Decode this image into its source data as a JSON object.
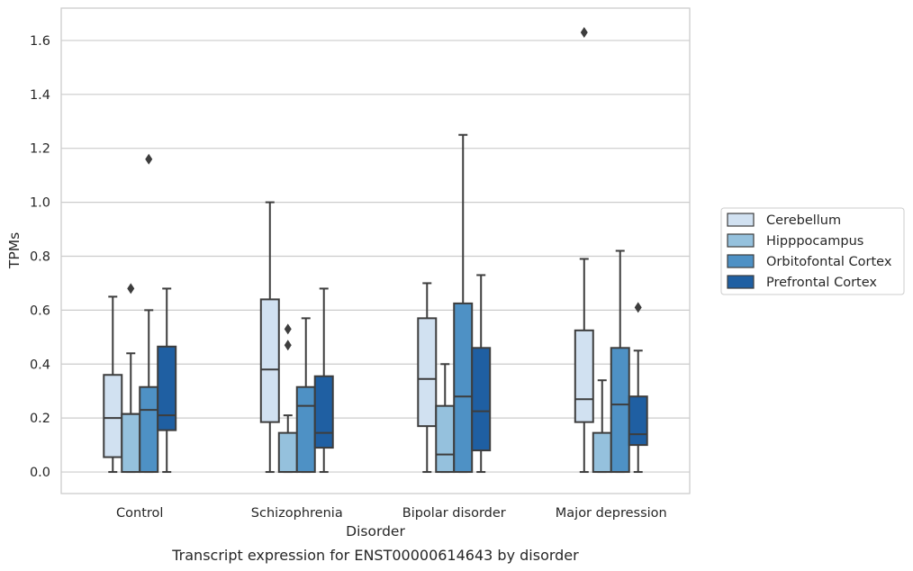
{
  "chart_data": {
    "type": "box",
    "title": "",
    "caption": "Transcript expression for ENST00000614643 by disorder",
    "xlabel": "Disorder",
    "ylabel": "TPMs",
    "ylim": [
      -0.08,
      1.72
    ],
    "yticks": [
      "0.0",
      "0.2",
      "0.4",
      "0.6",
      "0.8",
      "1.0",
      "1.2",
      "1.4",
      "1.6"
    ],
    "grid": true,
    "legend_position": "right",
    "categories": [
      "Control",
      "Schizophrenia",
      "Bipolar disorder",
      "Major depression"
    ],
    "series": [
      {
        "name": "Cerebellum",
        "color": "#d1e1f1",
        "boxes": [
          {
            "whislo": 0.0,
            "q1": 0.055,
            "med": 0.2,
            "q3": 0.36,
            "whishi": 0.65,
            "fliers": []
          },
          {
            "whislo": 0.0,
            "q1": 0.185,
            "med": 0.38,
            "q3": 0.64,
            "whishi": 1.0,
            "fliers": []
          },
          {
            "whislo": 0.0,
            "q1": 0.17,
            "med": 0.345,
            "q3": 0.57,
            "whishi": 0.7,
            "fliers": []
          },
          {
            "whislo": 0.0,
            "q1": 0.185,
            "med": 0.27,
            "q3": 0.525,
            "whishi": 0.79,
            "fliers": [
              1.63
            ]
          }
        ]
      },
      {
        "name": "Hipppocampus",
        "color": "#95c1dd",
        "boxes": [
          {
            "whislo": 0.0,
            "q1": 0.0,
            "med": 0.215,
            "q3": 0.215,
            "whishi": 0.44,
            "fliers": [
              0.68
            ]
          },
          {
            "whislo": 0.0,
            "q1": 0.0,
            "med": 0.0,
            "q3": 0.145,
            "whishi": 0.21,
            "fliers": [
              0.47,
              0.53
            ]
          },
          {
            "whislo": 0.0,
            "q1": 0.0,
            "med": 0.065,
            "q3": 0.245,
            "whishi": 0.4,
            "fliers": []
          },
          {
            "whislo": 0.0,
            "q1": 0.0,
            "med": 0.0,
            "q3": 0.145,
            "whishi": 0.34,
            "fliers": []
          }
        ]
      },
      {
        "name": "Orbitofontal Cortex",
        "color": "#4e91c5",
        "boxes": [
          {
            "whislo": 0.0,
            "q1": 0.0,
            "med": 0.23,
            "q3": 0.315,
            "whishi": 0.6,
            "fliers": [
              1.16
            ]
          },
          {
            "whislo": 0.0,
            "q1": 0.0,
            "med": 0.245,
            "q3": 0.315,
            "whishi": 0.57,
            "fliers": []
          },
          {
            "whislo": 0.0,
            "q1": 0.0,
            "med": 0.28,
            "q3": 0.625,
            "whishi": 1.25,
            "fliers": []
          },
          {
            "whislo": 0.0,
            "q1": 0.0,
            "med": 0.25,
            "q3": 0.46,
            "whishi": 0.82,
            "fliers": []
          }
        ]
      },
      {
        "name": "Prefrontal Cortex",
        "color": "#1f5fa2",
        "boxes": [
          {
            "whislo": 0.0,
            "q1": 0.155,
            "med": 0.21,
            "q3": 0.465,
            "whishi": 0.68,
            "fliers": []
          },
          {
            "whislo": 0.0,
            "q1": 0.09,
            "med": 0.145,
            "q3": 0.355,
            "whishi": 0.68,
            "fliers": []
          },
          {
            "whislo": 0.0,
            "q1": 0.08,
            "med": 0.225,
            "q3": 0.46,
            "whishi": 0.73,
            "fliers": []
          },
          {
            "whislo": 0.0,
            "q1": 0.1,
            "med": 0.14,
            "q3": 0.28,
            "whishi": 0.45,
            "fliers": [
              0.61
            ]
          }
        ]
      }
    ]
  }
}
